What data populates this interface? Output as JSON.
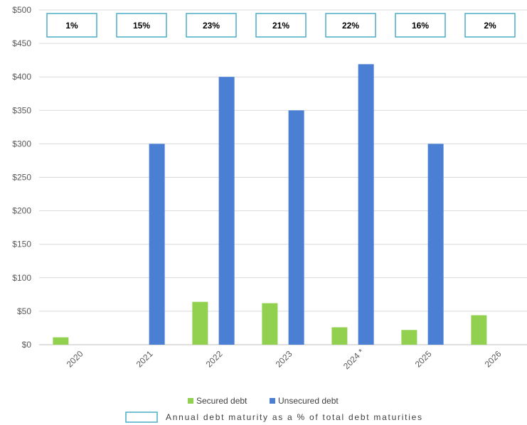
{
  "chart_data": {
    "type": "bar",
    "categories": [
      "2020",
      "2021",
      "2022",
      "2023",
      "2024 *",
      "2025",
      "2026"
    ],
    "series": [
      {
        "name": "Secured debt",
        "color": "#92d050",
        "values": [
          11,
          0,
          64,
          62,
          26,
          22,
          44
        ]
      },
      {
        "name": "Unsecured debt",
        "color": "#4a7fd4",
        "values": [
          0,
          300,
          400,
          350,
          419,
          300,
          0
        ]
      }
    ],
    "percent_labels": [
      "1%",
      "15%",
      "23%",
      "21%",
      "22%",
      "16%",
      "2%"
    ],
    "percent_box_legend": "Annual debt maturity as a % of total debt maturities",
    "percent_box_color": "#4bacc6",
    "yticks": [
      "$0",
      "$50",
      "$100",
      "$150",
      "$200",
      "$250",
      "$300",
      "$350",
      "$400",
      "$450",
      "$500"
    ],
    "ylim": [
      0,
      500
    ],
    "grid": true,
    "legend_position": "bottom"
  }
}
